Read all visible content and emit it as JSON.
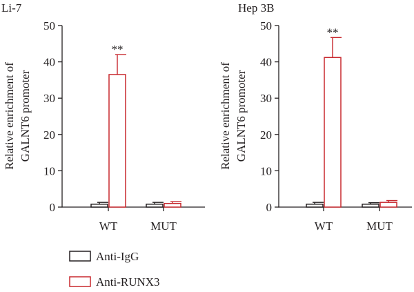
{
  "colors": {
    "axis": "#231f20",
    "anti_igg": "#231f20",
    "anti_runx3": "#c8282e",
    "background": "#ffffff"
  },
  "legend": {
    "placement": "bottom-left",
    "items": [
      {
        "label": "Anti-IgG",
        "color": "#231f20"
      },
      {
        "label": "Anti-RUNX3",
        "color": "#c8282e"
      }
    ]
  },
  "chart_data": [
    {
      "type": "bar",
      "title": "Li-7",
      "ylabel_line1": "Relative enrichment of",
      "ylabel_line2": "GALNT6 promoter",
      "xlabel": "",
      "ylim": [
        0,
        50
      ],
      "yticks": [
        0,
        10,
        20,
        30,
        40,
        50
      ],
      "categories": [
        "WT",
        "MUT"
      ],
      "grid": false,
      "series": [
        {
          "name": "Anti-IgG",
          "color": "#231f20",
          "values": [
            0.8,
            0.8
          ],
          "errors": [
            0.5,
            0.5
          ]
        },
        {
          "name": "Anti-RUNX3",
          "color": "#c8282e",
          "values": [
            36.5,
            1.0
          ],
          "errors": [
            5.5,
            0.5
          ]
        }
      ],
      "annotations": [
        {
          "category": "WT",
          "series": "Anti-RUNX3",
          "text": "**"
        }
      ]
    },
    {
      "type": "bar",
      "title": "Hep 3B",
      "ylabel_line1": "Relative enrichment of",
      "ylabel_line2": "GALNT6 promoter",
      "xlabel": "",
      "ylim": [
        0,
        50
      ],
      "yticks": [
        0,
        10,
        20,
        30,
        40,
        50
      ],
      "categories": [
        "WT",
        "MUT"
      ],
      "grid": false,
      "series": [
        {
          "name": "Anti-IgG",
          "color": "#231f20",
          "values": [
            0.8,
            0.8
          ],
          "errors": [
            0.5,
            0.4
          ]
        },
        {
          "name": "Anti-RUNX3",
          "color": "#c8282e",
          "values": [
            41.2,
            1.3
          ],
          "errors": [
            5.5,
            0.5
          ]
        }
      ],
      "annotations": [
        {
          "category": "WT",
          "series": "Anti-RUNX3",
          "text": "**"
        }
      ]
    }
  ]
}
